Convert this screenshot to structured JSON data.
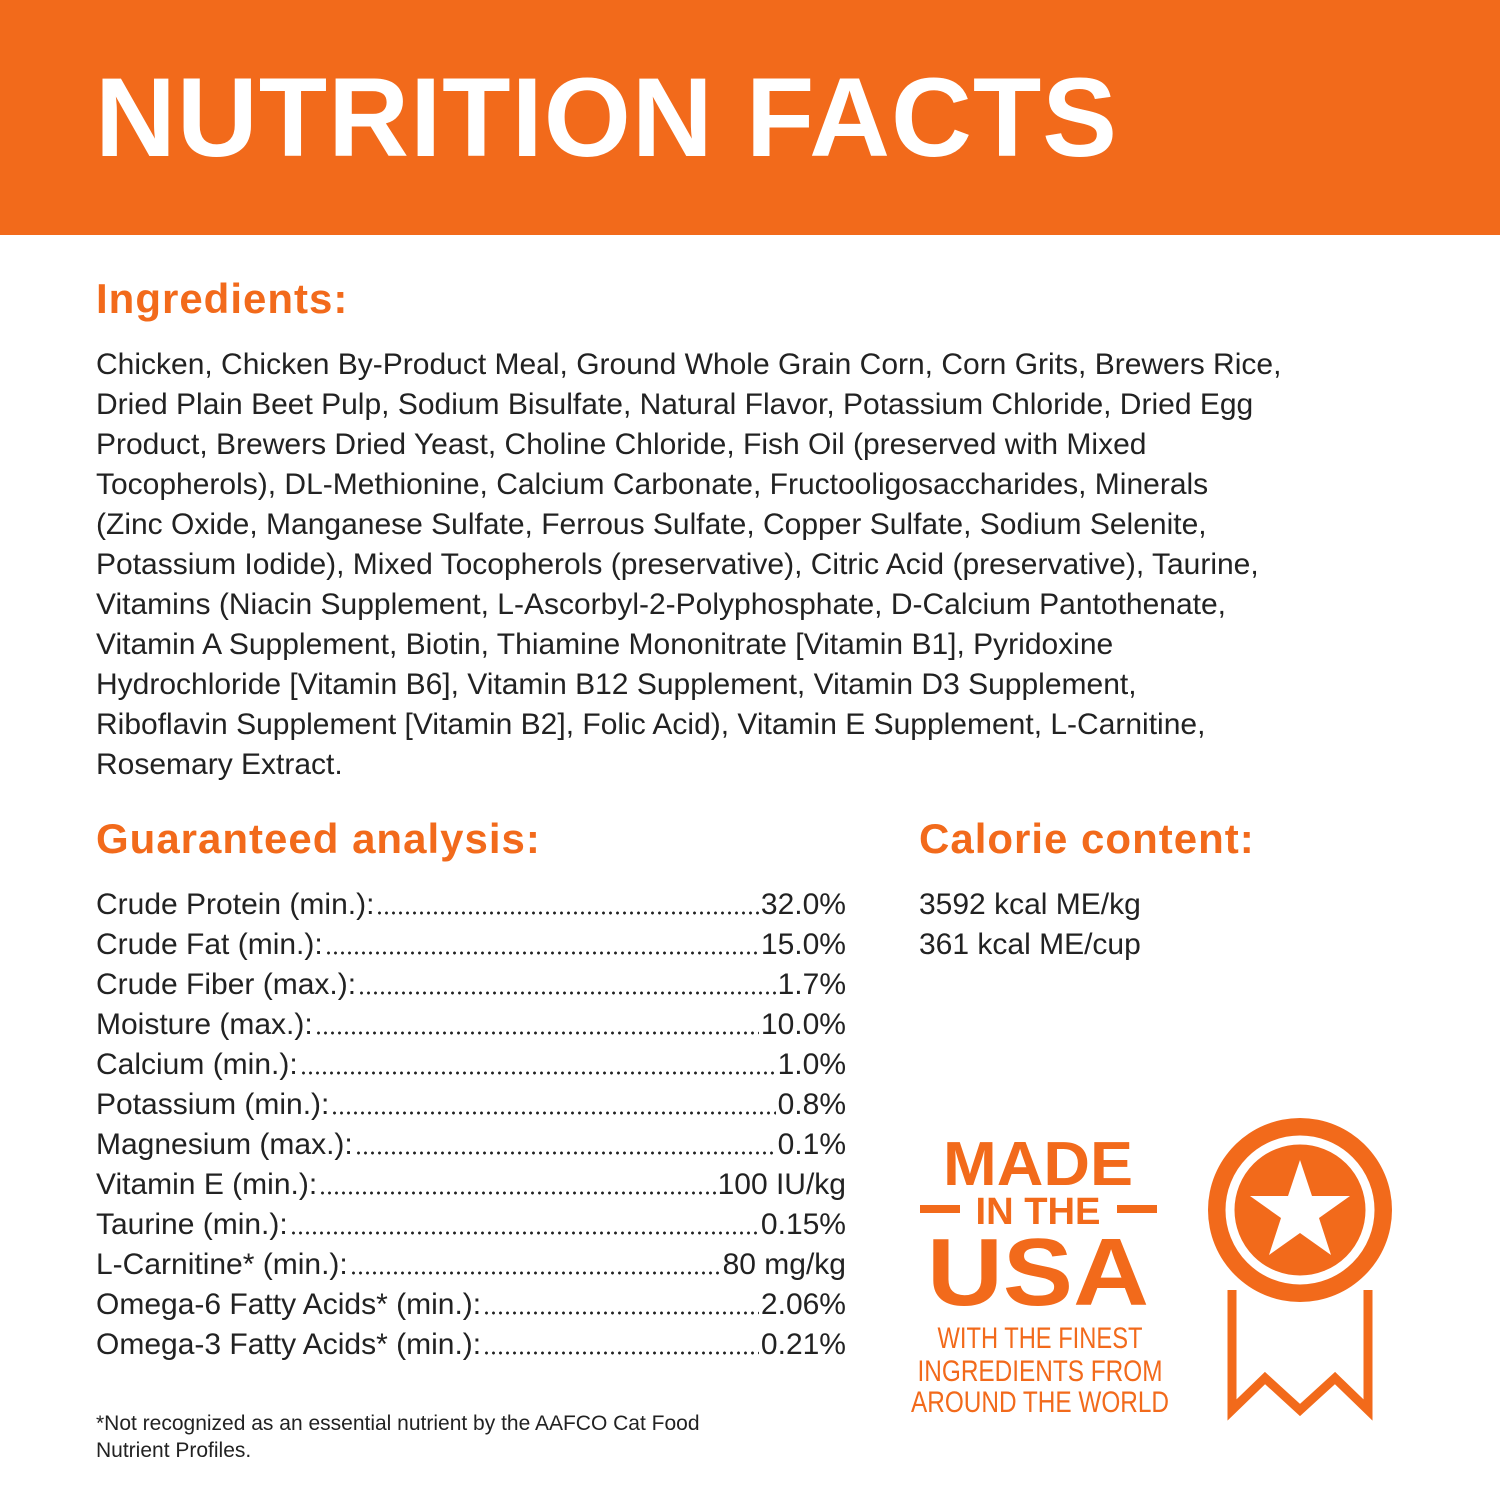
{
  "header": {
    "title": "NUTRITION FACTS"
  },
  "ingredients": {
    "heading": "Ingredients:",
    "lines": [
      "Chicken, Chicken By-Product Meal, Ground Whole Grain Corn, Corn Grits, Brewers Rice,",
      "Dried Plain Beet Pulp, Sodium Bisulfate, Natural Flavor, Potassium Chloride, Dried Egg",
      "Product, Brewers Dried Yeast, Choline Chloride, Fish Oil (preserved with Mixed",
      "Tocopherols), DL-Methionine, Calcium Carbonate, Fructooligosaccharides, Minerals",
      "(Zinc Oxide, Manganese Sulfate, Ferrous Sulfate, Copper Sulfate, Sodium Selenite,",
      "Potassium Iodide), Mixed Tocopherols (preservative), Citric Acid (preservative), Taurine,",
      "Vitamins (Niacin Supplement, L-Ascorbyl-2-Polyphosphate, D-Calcium Pantothenate,",
      "Vitamin A Supplement, Biotin, Thiamine Mononitrate [Vitamin B1], Pyridoxine",
      "Hydrochloride [Vitamin B6], Vitamin B12 Supplement, Vitamin D3 Supplement,",
      "Riboflavin Supplement [Vitamin B2], Folic Acid), Vitamin E Supplement, L-Carnitine,",
      "Rosemary Extract."
    ]
  },
  "analysis": {
    "heading": "Guaranteed analysis:",
    "rows": [
      [
        "Crude Protein (min.):",
        "32.0%"
      ],
      [
        "Crude Fat (min.):",
        "15.0%"
      ],
      [
        "Crude Fiber (max.):",
        "1.7%"
      ],
      [
        "Moisture (max.):",
        "10.0%"
      ],
      [
        "Calcium (min.):",
        "1.0%"
      ],
      [
        "Potassium (min.):",
        "0.8%"
      ],
      [
        "Magnesium (max.):",
        "0.1%"
      ],
      [
        "Vitamin E (min.):",
        "100 IU/kg"
      ],
      [
        "Taurine (min.):",
        "0.15%"
      ],
      [
        "L-Carnitine* (min.):",
        "80 mg/kg"
      ],
      [
        "Omega-6 Fatty Acids* (min.):",
        "2.06%"
      ],
      [
        "Omega-3 Fatty Acids* (min.):",
        "0.21%"
      ]
    ]
  },
  "calories": {
    "heading": "Calorie content:",
    "lines": [
      "3592 kcal ME/kg",
      "361 kcal ME/cup"
    ]
  },
  "badge": {
    "made": "MADE",
    "in_the": "IN THE",
    "usa": "USA",
    "tagline": [
      "WITH THE FINEST",
      "INGREDIENTS FROM",
      "AROUND THE WORLD"
    ]
  },
  "footnote": [
    "*Not recognized as an essential nutrient by the AAFCO Cat Food",
    "Nutrient Profiles."
  ]
}
